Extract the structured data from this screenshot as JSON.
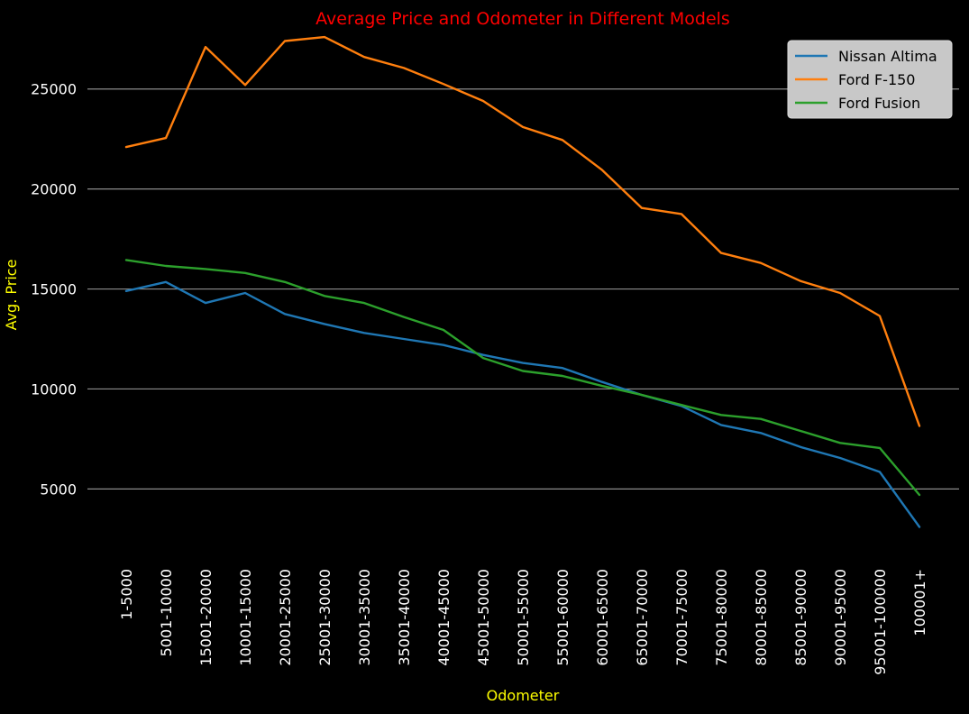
{
  "chart_data": {
    "type": "line",
    "title": "Average Price and Odometer in Different Models",
    "xlabel": "Odometer",
    "ylabel": "Avg. Price",
    "categories": [
      "1-5000",
      "5001-10000",
      "15001-20000",
      "10001-15000",
      "20001-25000",
      "25001-30000",
      "30001-35000",
      "35001-40000",
      "40001-45000",
      "45001-50000",
      "50001-55000",
      "55001-60000",
      "60001-65000",
      "65001-70000",
      "70001-75000",
      "75001-80000",
      "80001-85000",
      "85001-90000",
      "90001-95000",
      "95001-100000",
      "100001+"
    ],
    "ylim": [
      1500,
      29000
    ],
    "yticks": [
      5000,
      10000,
      15000,
      20000,
      25000
    ],
    "grid": "horizontal",
    "legend_position": "top-right",
    "series": [
      {
        "name": "Nissan Altima",
        "color": "#1f77b4",
        "values": [
          14900,
          15350,
          14300,
          14800,
          13750,
          13250,
          12800,
          12500,
          12200,
          11700,
          11300,
          11050,
          10350,
          9700,
          9150,
          8200,
          7800,
          7100,
          6550,
          5850,
          3100
        ]
      },
      {
        "name": "Ford F-150",
        "color": "#ff7f0e",
        "values": [
          22100,
          22550,
          27100,
          25200,
          27400,
          27600,
          26600,
          26050,
          25250,
          24400,
          23100,
          22450,
          20950,
          19050,
          18750,
          16800,
          16300,
          15400,
          14800,
          13650,
          8150
        ]
      },
      {
        "name": "Ford Fusion",
        "color": "#2ca02c",
        "values": [
          16450,
          16150,
          16000,
          15800,
          15350,
          14650,
          14300,
          13600,
          12950,
          11550,
          10900,
          10650,
          10150,
          9700,
          9200,
          8700,
          8500,
          7900,
          7300,
          7050,
          4700
        ]
      }
    ]
  }
}
